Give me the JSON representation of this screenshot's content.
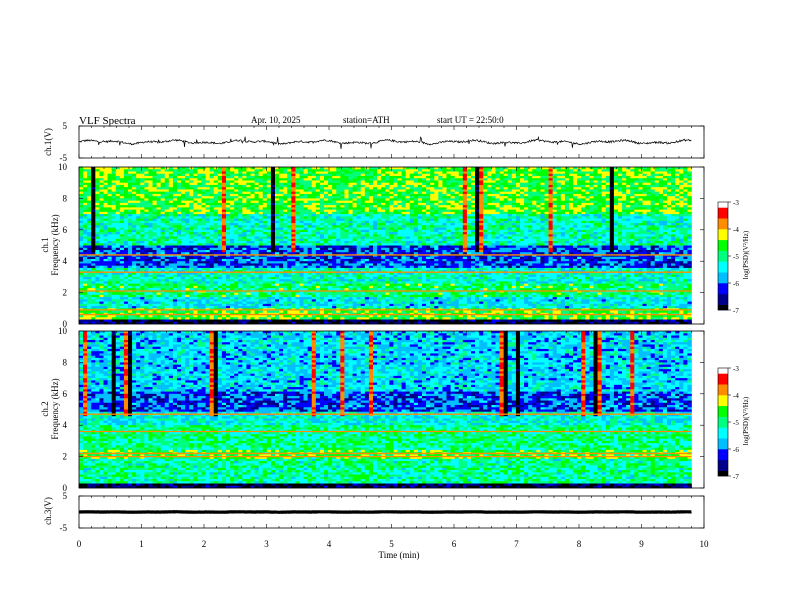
{
  "header": {
    "title": "VLF Spectra",
    "date": "Apr. 10, 2025",
    "station": "station=ATH",
    "start_ut": "start UT = 22:50:0"
  },
  "axes": {
    "time_label": "Time (min)",
    "ch1_wave_label": "ch.1(V)",
    "ch3_wave_label": "ch.3(V)",
    "ch1_spec_label_line1": "ch.1",
    "ch2_spec_label_line1": "ch.2",
    "freq_label": "Frequency (kHz)",
    "colorbar_label": "log(PSD)(V²/Hz)"
  },
  "colors": {
    "colormap": [
      "#000000",
      "#00008b",
      "#0000ff",
      "#00bfff",
      "#00ffff",
      "#00ff7f",
      "#00ff00",
      "#ffff00",
      "#ff8c00",
      "#ff0000",
      "#ffffff"
    ]
  },
  "chart_data": [
    {
      "type": "line",
      "name": "ch.1 waveform",
      "ylabel": "ch.1(V)",
      "x_range": [
        0,
        10
      ],
      "ylim": [
        -5,
        5
      ],
      "yticks": [
        -5,
        5
      ],
      "data_end_min": 9.8,
      "mean": 0,
      "amplitude": 1
    },
    {
      "type": "heatmap",
      "name": "ch.1 spectrogram",
      "xlabel": "",
      "ylabel": "Frequency (kHz)",
      "x_range": [
        0,
        10
      ],
      "ylim": [
        0,
        10
      ],
      "yticks": [
        0,
        2,
        4,
        6,
        8,
        10
      ],
      "data_end_min": 9.8,
      "colorbar": {
        "min": -7,
        "max": -3,
        "ticks": [
          -7,
          -6,
          -5,
          -4,
          -3
        ],
        "label": "log(PSD)(V²/Hz)"
      },
      "bands": [
        {
          "f_range": [
            0,
            0.35
          ],
          "log_psd": -6.8
        },
        {
          "f_range": [
            0.35,
            1.0
          ],
          "log_psd": -4.6
        },
        {
          "f_range": [
            1.0,
            1.7
          ],
          "log_psd": -5.5
        },
        {
          "f_range": [
            1.7,
            2.6
          ],
          "log_psd": -4.9
        },
        {
          "f_range": [
            2.6,
            3.6
          ],
          "log_psd": -5.3
        },
        {
          "f_range": [
            3.6,
            5.0
          ],
          "log_psd": -6.1
        },
        {
          "f_range": [
            5.0,
            7.0
          ],
          "log_psd": -5.2
        },
        {
          "f_range": [
            7.0,
            10.0
          ],
          "log_psd": -4.6
        }
      ],
      "strong_lines_khz": [
        0.6,
        0.9,
        2.1,
        3.3,
        4.4
      ]
    },
    {
      "type": "heatmap",
      "name": "ch.2 spectrogram",
      "xlabel": "",
      "ylabel": "Frequency (kHz)",
      "x_range": [
        0,
        10
      ],
      "ylim": [
        0,
        10
      ],
      "yticks": [
        0,
        2,
        4,
        6,
        8,
        10
      ],
      "data_end_min": 9.8,
      "colorbar": {
        "min": -7,
        "max": -3,
        "ticks": [
          -7,
          -6,
          -5,
          -4,
          -3
        ],
        "label": "log(PSD)(V²/Hz)"
      },
      "bands": [
        {
          "f_range": [
            0,
            0.3
          ],
          "log_psd": -6.8
        },
        {
          "f_range": [
            0.3,
            1.8
          ],
          "log_psd": -5.1
        },
        {
          "f_range": [
            1.8,
            2.5
          ],
          "log_psd": -4.7
        },
        {
          "f_range": [
            2.5,
            4.0
          ],
          "log_psd": -5.0
        },
        {
          "f_range": [
            4.0,
            4.8
          ],
          "log_psd": -5.4
        },
        {
          "f_range": [
            4.8,
            6.2
          ],
          "log_psd": -6.1
        },
        {
          "f_range": [
            6.2,
            10.0
          ],
          "log_psd": -5.6
        }
      ],
      "strong_lines_khz": [
        2.0,
        2.2,
        3.6,
        4.7
      ]
    },
    {
      "type": "line",
      "name": "ch.3 waveform",
      "ylabel": "ch.3(V)",
      "xlabel": "Time (min)",
      "x_range": [
        0,
        10
      ],
      "xticks": [
        0,
        1,
        2,
        3,
        4,
        5,
        6,
        7,
        8,
        9,
        10
      ],
      "ylim": [
        -5,
        5
      ],
      "yticks": [
        -5,
        5
      ],
      "data_end_min": 9.8,
      "mean": 0,
      "amplitude": 0.1
    }
  ]
}
